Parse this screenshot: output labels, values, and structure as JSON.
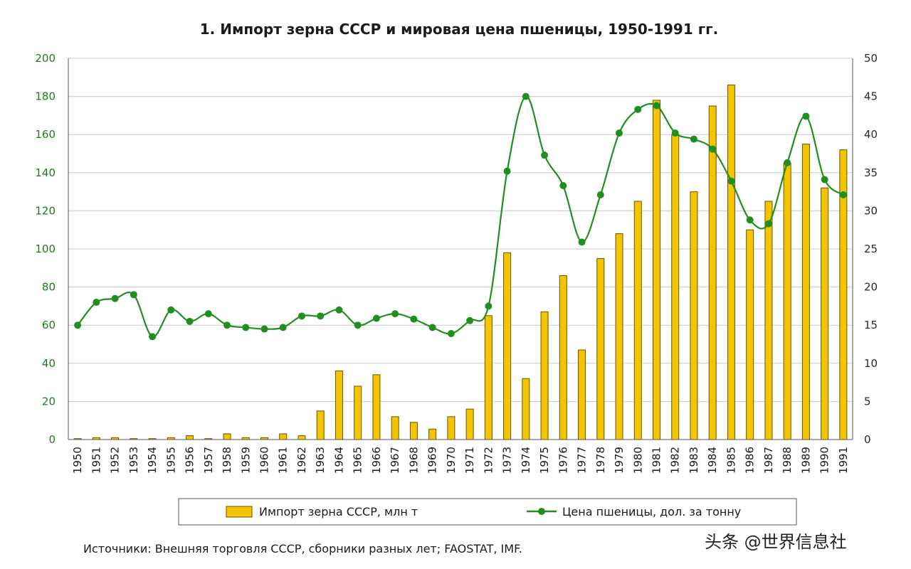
{
  "colors": {
    "bar_fill": "#f2c500",
    "bar_stroke": "#6b5400",
    "line": "#1f8f1f",
    "grid": "#c8c8c8",
    "axis": "#555555",
    "left_tick": "#1f7a1f"
  },
  "chart_data": {
    "type": "bar+line",
    "title": "1. Импорт зерна СССР и мировая цена пшеницы, 1950-1991 гг.",
    "categories": [
      "1950",
      "1951",
      "1952",
      "1953",
      "1954",
      "1955",
      "1956",
      "1957",
      "1958",
      "1959",
      "1960",
      "1961",
      "1962",
      "1963",
      "1964",
      "1965",
      "1966",
      "1967",
      "1968",
      "1969",
      "1970",
      "1971",
      "1972",
      "1973",
      "1974",
      "1975",
      "1976",
      "1977",
      "1978",
      "1979",
      "1980",
      "1981",
      "1982",
      "1983",
      "1984",
      "1985",
      "1986",
      "1987",
      "1988",
      "1989",
      "1990",
      "1991"
    ],
    "left_axis": {
      "ylim": [
        0,
        200
      ],
      "ticks": [
        "0",
        "20",
        "40",
        "60",
        "80",
        "100",
        "120",
        "140",
        "160",
        "180",
        "200"
      ]
    },
    "right_axis": {
      "ylim": [
        0,
        50
      ],
      "ticks": [
        "0",
        "5",
        "10",
        "15",
        "20",
        "25",
        "30",
        "35",
        "40",
        "45",
        "50"
      ]
    },
    "series": [
      {
        "name": "Импорт зерна СССР, млн т",
        "type": "bar",
        "axis": "left",
        "values": [
          0.5,
          1,
          1,
          0.5,
          0.5,
          1,
          2,
          0.5,
          3,
          1,
          1,
          3,
          2,
          15,
          36,
          28,
          34,
          12,
          9,
          5.5,
          12,
          16,
          65,
          98,
          32,
          67,
          86,
          47,
          95,
          108,
          125,
          178,
          160,
          130,
          175,
          186,
          110,
          125,
          145,
          155,
          132,
          152
        ]
      },
      {
        "name": "Цена пшеницы, дол. за тонну",
        "type": "line",
        "axis": "right",
        "values": [
          15,
          18,
          18.5,
          19,
          13.5,
          17,
          15.5,
          16.5,
          15,
          14.7,
          14.5,
          14.7,
          16.2,
          16.2,
          17,
          15,
          15.9,
          16.5,
          15.8,
          14.7,
          13.9,
          15.6,
          17.5,
          35.2,
          45,
          37.3,
          33.3,
          25.9,
          32.1,
          40.2,
          43.3,
          43.8,
          40.2,
          39.4,
          38.1,
          33.9,
          28.8,
          28.3,
          36.3,
          42.4,
          34.1,
          32.1
        ]
      }
    ],
    "legend": {
      "position": "bottom"
    }
  },
  "source_note": "Источники: Внешняя торговля СССР, сборники разных лет; FAOSTAT, IMF.",
  "watermark": "头条 @世界信息社"
}
